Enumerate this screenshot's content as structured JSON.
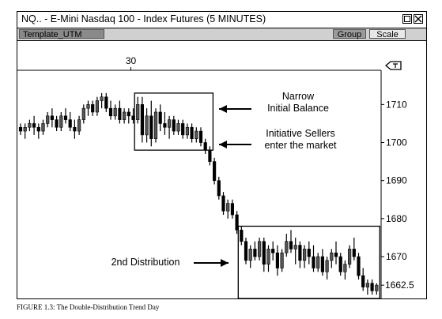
{
  "window": {
    "title": "NQ.. - E-Mini Nasdaq 100 - Index Futures (5 MINUTES)",
    "toolbar": {
      "template_label": "Template_UTM",
      "group_label": "Group",
      "scale_label": "Scale"
    }
  },
  "caption": "FIGURE 1.3: The Double-Distribution Trend Day",
  "chart_data": {
    "type": "candlestick",
    "x_tick_labels": [
      {
        "label": "30",
        "bar_index": 25
      }
    ],
    "y_ticks": [
      1710,
      1700,
      1690,
      1680,
      1670
    ],
    "y_last_price_label": "1662.5",
    "ylim": [
      1659,
      1719
    ],
    "annotations": [
      {
        "lines": [
          "Narrow",
          "Initial Balance"
        ],
        "arrow": "left"
      },
      {
        "lines": [
          "Initiative Sellers",
          "enter the market"
        ],
        "arrow": "left"
      },
      {
        "lines": [
          "2nd Distribution"
        ],
        "arrow": "right"
      }
    ],
    "boxes": [
      {
        "from_bar": 26,
        "to_bar": 42,
        "low": 1698,
        "high": 1713
      },
      {
        "from_bar": 49,
        "to_bar": 79,
        "low": 1659,
        "high": 1678
      }
    ],
    "bars": [
      [
        1704,
        1705,
        1702,
        1703
      ],
      [
        1703,
        1705,
        1701,
        1704
      ],
      [
        1704,
        1706,
        1703,
        1705
      ],
      [
        1705,
        1707,
        1702,
        1704
      ],
      [
        1704,
        1705,
        1701,
        1703
      ],
      [
        1703,
        1706,
        1702,
        1705
      ],
      [
        1705,
        1708,
        1704,
        1707
      ],
      [
        1707,
        1709,
        1704,
        1706
      ],
      [
        1706,
        1707,
        1703,
        1704
      ],
      [
        1704,
        1708,
        1703,
        1707
      ],
      [
        1707,
        1709,
        1705,
        1706
      ],
      [
        1706,
        1708,
        1703,
        1704
      ],
      [
        1704,
        1706,
        1701,
        1703
      ],
      [
        1703,
        1707,
        1702,
        1706
      ],
      [
        1706,
        1710,
        1705,
        1709
      ],
      [
        1709,
        1711,
        1707,
        1710
      ],
      [
        1710,
        1711,
        1707,
        1708
      ],
      [
        1708,
        1712,
        1707,
        1711
      ],
      [
        1711,
        1713,
        1709,
        1712
      ],
      [
        1712,
        1713,
        1708,
        1709
      ],
      [
        1709,
        1711,
        1706,
        1707
      ],
      [
        1707,
        1710,
        1706,
        1709
      ],
      [
        1709,
        1711,
        1705,
        1706
      ],
      [
        1706,
        1709,
        1705,
        1708
      ],
      [
        1708,
        1709,
        1705,
        1707
      ],
      [
        1707,
        1709,
        1705,
        1706
      ],
      [
        1706,
        1712,
        1705,
        1710
      ],
      [
        1710,
        1712,
        1700,
        1702
      ],
      [
        1702,
        1709,
        1700,
        1707
      ],
      [
        1707,
        1711,
        1699,
        1701
      ],
      [
        1701,
        1709,
        1700,
        1708
      ],
      [
        1708,
        1710,
        1703,
        1705
      ],
      [
        1705,
        1708,
        1702,
        1704
      ],
      [
        1704,
        1707,
        1701,
        1706
      ],
      [
        1706,
        1707,
        1702,
        1703
      ],
      [
        1703,
        1706,
        1702,
        1705
      ],
      [
        1705,
        1706,
        1701,
        1702
      ],
      [
        1702,
        1705,
        1701,
        1704
      ],
      [
        1704,
        1705,
        1700,
        1701
      ],
      [
        1701,
        1704,
        1700,
        1703
      ],
      [
        1703,
        1704,
        1699,
        1700
      ],
      [
        1700,
        1701,
        1697,
        1698
      ],
      [
        1698,
        1699,
        1694,
        1695
      ],
      [
        1695,
        1696,
        1689,
        1690
      ],
      [
        1690,
        1691,
        1685,
        1686
      ],
      [
        1686,
        1687,
        1681,
        1682
      ],
      [
        1682,
        1685,
        1680,
        1684
      ],
      [
        1684,
        1685,
        1680,
        1681
      ],
      [
        1681,
        1682,
        1676,
        1677
      ],
      [
        1677,
        1678,
        1673,
        1674
      ],
      [
        1674,
        1675,
        1668,
        1669
      ],
      [
        1669,
        1673,
        1667,
        1672
      ],
      [
        1672,
        1674,
        1669,
        1670
      ],
      [
        1670,
        1675,
        1669,
        1674
      ],
      [
        1674,
        1675,
        1666,
        1668
      ],
      [
        1668,
        1673,
        1666,
        1672
      ],
      [
        1672,
        1674,
        1669,
        1671
      ],
      [
        1671,
        1673,
        1665,
        1667
      ],
      [
        1667,
        1672,
        1666,
        1671
      ],
      [
        1671,
        1676,
        1670,
        1674
      ],
      [
        1674,
        1677,
        1671,
        1672
      ],
      [
        1672,
        1675,
        1668,
        1673
      ],
      [
        1673,
        1674,
        1667,
        1669
      ],
      [
        1669,
        1673,
        1667,
        1672
      ],
      [
        1672,
        1674,
        1668,
        1670
      ],
      [
        1670,
        1673,
        1666,
        1667
      ],
      [
        1667,
        1671,
        1666,
        1670
      ],
      [
        1670,
        1672,
        1665,
        1666
      ],
      [
        1666,
        1670,
        1664,
        1669
      ],
      [
        1669,
        1672,
        1667,
        1671
      ],
      [
        1671,
        1674,
        1668,
        1670
      ],
      [
        1670,
        1671,
        1665,
        1666
      ],
      [
        1666,
        1669,
        1664,
        1668
      ],
      [
        1668,
        1673,
        1667,
        1672
      ],
      [
        1672,
        1675,
        1669,
        1670
      ],
      [
        1670,
        1671,
        1664,
        1665
      ],
      [
        1665,
        1667,
        1661,
        1662
      ],
      [
        1662,
        1664,
        1660,
        1663
      ],
      [
        1663,
        1664,
        1660,
        1661
      ],
      [
        1661,
        1663,
        1660,
        1662.5
      ]
    ]
  }
}
